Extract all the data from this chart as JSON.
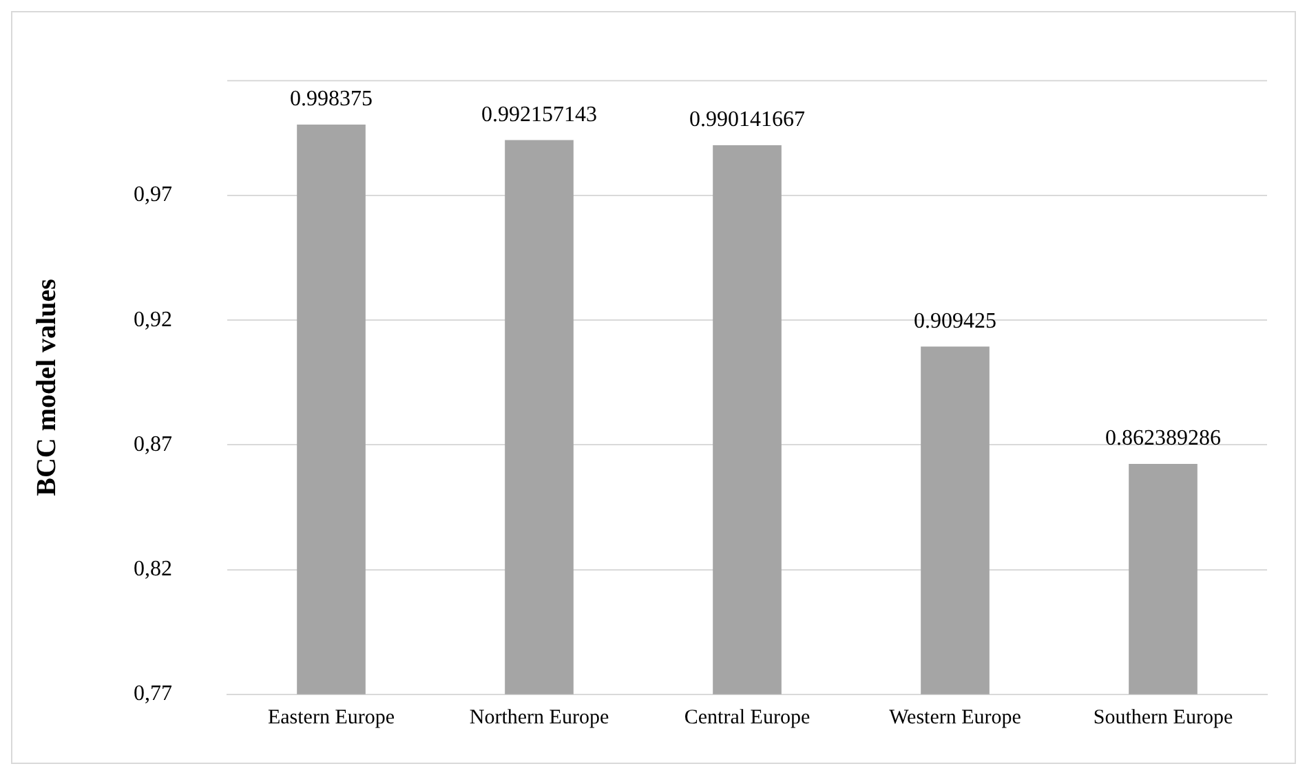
{
  "chart_data": {
    "type": "bar",
    "ylabel": "BCC model values",
    "categories": [
      "Eastern Europe",
      "Northern Europe",
      "Central Europe",
      "Western Europe",
      "Southern Europe"
    ],
    "values": [
      0.998375,
      0.992157143,
      0.990141667,
      0.909425,
      0.862389286
    ],
    "color": "#a5a5a5",
    "ylim": [
      0.77,
      1.016
    ],
    "yticks": [
      {
        "value": 0.77,
        "label": "0,77"
      },
      {
        "value": 0.82,
        "label": "0,82"
      },
      {
        "value": 0.87,
        "label": "0,87"
      },
      {
        "value": 0.92,
        "label": "0,92"
      },
      {
        "value": 0.97,
        "label": "0,97"
      }
    ],
    "grid": "y",
    "data_labels": true
  }
}
